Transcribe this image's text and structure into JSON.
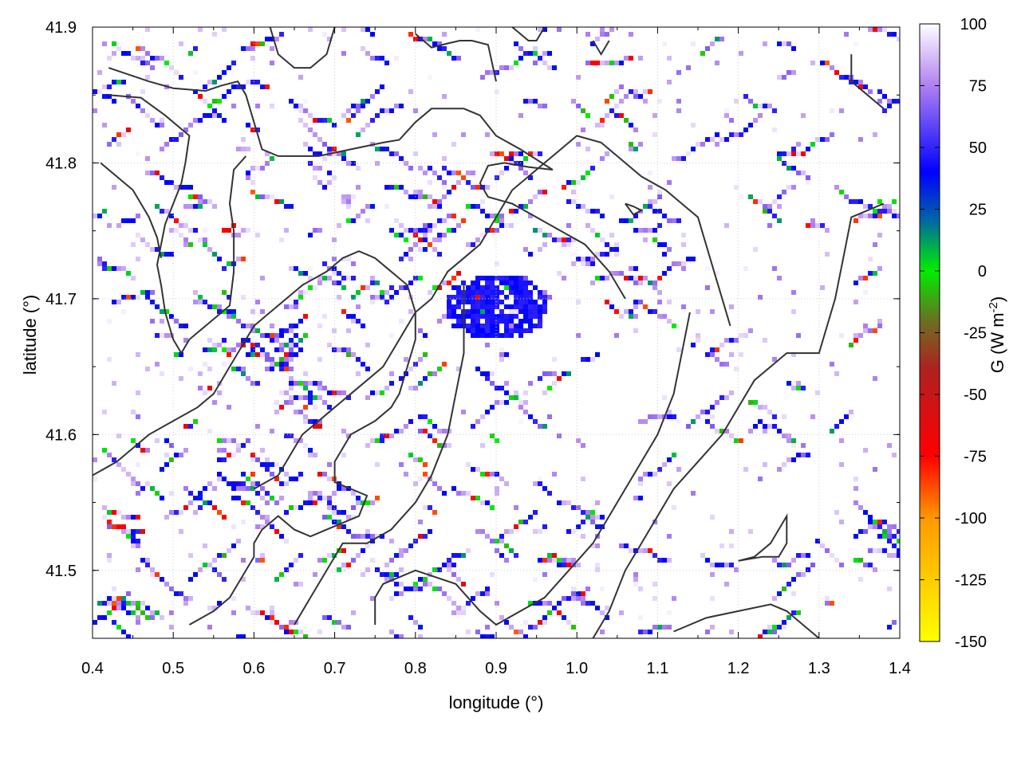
{
  "chart_data": {
    "type": "heatmap",
    "title": "",
    "xlabel": "longitude (°)",
    "ylabel": "latitude (°)",
    "xlim": [
      0.4,
      1.4
    ],
    "ylim": [
      41.45,
      41.9
    ],
    "x_ticks": [
      "0.4",
      "0.5",
      "0.6",
      "0.7",
      "0.8",
      "0.9",
      "1.0",
      "1.1",
      "1.2",
      "1.3",
      "1.4"
    ],
    "y_ticks": [
      "41.5",
      "41.6",
      "41.7",
      "41.8",
      "41.9"
    ],
    "grid": true,
    "colorbar": {
      "label_main": "G (W m",
      "label_sup": "-2",
      "label_end": ")",
      "range": [
        -150,
        100
      ],
      "ticks": [
        "100",
        "75",
        "50",
        "25",
        "0",
        "-25",
        "-50",
        "-75",
        "-100",
        "-125",
        "-150"
      ],
      "stops": [
        {
          "value": -150,
          "color": "#ffff00"
        },
        {
          "value": -100,
          "color": "#ff9900"
        },
        {
          "value": -75,
          "color": "#ff0000"
        },
        {
          "value": -40,
          "color": "#b02020"
        },
        {
          "value": -20,
          "color": "#6a7020"
        },
        {
          "value": 0,
          "color": "#00ee00"
        },
        {
          "value": 20,
          "color": "#006aa0"
        },
        {
          "value": 40,
          "color": "#0000ff"
        },
        {
          "value": 75,
          "color": "#b080f0"
        },
        {
          "value": 100,
          "color": "#ffffff"
        }
      ]
    },
    "contours": [
      [
        [
          0.42,
          41.87
        ],
        [
          0.47,
          41.86
        ],
        [
          0.5,
          41.855
        ],
        [
          0.54,
          41.853
        ],
        [
          0.56,
          41.857
        ],
        [
          0.58,
          41.86
        ],
        [
          0.59,
          41.85
        ],
        [
          0.6,
          41.83
        ],
        [
          0.61,
          41.81
        ],
        [
          0.63,
          41.805
        ],
        [
          0.68,
          41.805
        ],
        [
          0.72,
          41.81
        ],
        [
          0.76,
          41.815
        ],
        [
          0.78,
          41.817
        ],
        [
          0.8,
          41.83
        ],
        [
          0.82,
          41.84
        ],
        [
          0.86,
          41.84
        ],
        [
          0.88,
          41.835
        ],
        [
          0.9,
          41.82
        ],
        [
          0.93,
          41.81
        ],
        [
          0.97,
          41.795
        ],
        [
          0.94,
          41.797
        ],
        [
          0.91,
          41.8
        ],
        [
          0.89,
          41.798
        ],
        [
          0.88,
          41.785
        ],
        [
          0.89,
          41.775
        ],
        [
          0.92,
          41.77
        ],
        [
          0.95,
          41.76
        ],
        [
          0.98,
          41.75
        ],
        [
          1.01,
          41.74
        ],
        [
          1.04,
          41.72
        ],
        [
          1.06,
          41.7
        ]
      ],
      [
        [
          0.42,
          41.85
        ],
        [
          0.46,
          41.848
        ],
        [
          0.49,
          41.835
        ],
        [
          0.52,
          41.82
        ],
        [
          0.515,
          41.8
        ],
        [
          0.51,
          41.785
        ],
        [
          0.5,
          41.77
        ],
        [
          0.49,
          41.755
        ],
        [
          0.485,
          41.74
        ],
        [
          0.48,
          41.725
        ],
        [
          0.485,
          41.71
        ],
        [
          0.49,
          41.69
        ],
        [
          0.5,
          41.67
        ],
        [
          0.51,
          41.66
        ],
        [
          0.52,
          41.67
        ],
        [
          0.55,
          41.685
        ],
        [
          0.57,
          41.695
        ],
        [
          0.575,
          41.72
        ],
        [
          0.575,
          41.75
        ],
        [
          0.57,
          41.77
        ],
        [
          0.575,
          41.795
        ],
        [
          0.59,
          41.805
        ]
      ],
      [
        [
          0.62,
          41.9
        ],
        [
          0.63,
          41.88
        ],
        [
          0.65,
          41.87
        ],
        [
          0.67,
          41.87
        ],
        [
          0.69,
          41.88
        ],
        [
          0.7,
          41.9
        ]
      ],
      [
        [
          0.8,
          41.895
        ],
        [
          0.82,
          41.885
        ],
        [
          0.84,
          41.888
        ],
        [
          0.855,
          41.89
        ],
        [
          0.87,
          41.89
        ],
        [
          0.89,
          41.887
        ],
        [
          0.9,
          41.86
        ]
      ],
      [
        [
          0.92,
          41.9
        ],
        [
          0.94,
          41.89
        ],
        [
          0.95,
          41.89
        ],
        [
          0.96,
          41.9
        ]
      ],
      [
        [
          1.02,
          41.89
        ],
        [
          1.03,
          41.88
        ],
        [
          1.04,
          41.89
        ]
      ],
      [
        [
          0.41,
          41.8
        ],
        [
          0.45,
          41.78
        ],
        [
          0.47,
          41.76
        ],
        [
          0.48,
          41.745
        ],
        [
          0.485,
          41.73
        ]
      ],
      [
        [
          0.6,
          41.56
        ],
        [
          0.63,
          41.57
        ],
        [
          0.66,
          41.6
        ],
        [
          0.68,
          41.61
        ],
        [
          0.7,
          41.62
        ],
        [
          0.72,
          41.63
        ],
        [
          0.74,
          41.64
        ],
        [
          0.76,
          41.65
        ],
        [
          0.78,
          41.67
        ],
        [
          0.79,
          41.68
        ],
        [
          0.8,
          41.69
        ],
        [
          0.82,
          41.7
        ],
        [
          0.84,
          41.72
        ],
        [
          0.86,
          41.73
        ],
        [
          0.88,
          41.74
        ],
        [
          0.9,
          41.76
        ],
        [
          0.92,
          41.78
        ],
        [
          0.94,
          41.79
        ],
        [
          0.96,
          41.8
        ],
        [
          0.98,
          41.81
        ],
        [
          1.0,
          41.82
        ],
        [
          1.03,
          41.815
        ],
        [
          1.05,
          41.805
        ],
        [
          1.08,
          41.79
        ],
        [
          1.11,
          41.78
        ],
        [
          1.13,
          41.77
        ],
        [
          1.15,
          41.76
        ],
        [
          1.16,
          41.74
        ],
        [
          1.17,
          41.72
        ],
        [
          1.18,
          41.7
        ],
        [
          1.19,
          41.68
        ]
      ],
      [
        [
          0.4,
          41.57
        ],
        [
          0.43,
          41.58
        ],
        [
          0.45,
          41.59
        ],
        [
          0.47,
          41.6
        ],
        [
          0.5,
          41.61
        ],
        [
          0.53,
          41.62
        ],
        [
          0.55,
          41.63
        ],
        [
          0.57,
          41.65
        ],
        [
          0.59,
          41.67
        ],
        [
          0.6,
          41.68
        ],
        [
          0.62,
          41.69
        ],
        [
          0.64,
          41.7
        ],
        [
          0.66,
          41.71
        ],
        [
          0.69,
          41.72
        ],
        [
          0.71,
          41.73
        ],
        [
          0.73,
          41.735
        ],
        [
          0.75,
          41.73
        ],
        [
          0.77,
          41.72
        ],
        [
          0.79,
          41.71
        ],
        [
          0.8,
          41.69
        ],
        [
          0.8,
          41.67
        ],
        [
          0.79,
          41.65
        ],
        [
          0.78,
          41.63
        ],
        [
          0.77,
          41.62
        ],
        [
          0.75,
          41.61
        ],
        [
          0.72,
          41.6
        ],
        [
          0.71,
          41.59
        ],
        [
          0.7,
          41.58
        ],
        [
          0.7,
          41.565
        ],
        [
          0.72,
          41.56
        ],
        [
          0.74,
          41.555
        ],
        [
          0.73,
          41.54
        ],
        [
          0.71,
          41.535
        ],
        [
          0.69,
          41.53
        ],
        [
          0.67,
          41.525
        ],
        [
          0.65,
          41.53
        ],
        [
          0.63,
          41.54
        ],
        [
          0.61,
          41.53
        ],
        [
          0.6,
          41.52
        ],
        [
          0.6,
          41.51
        ],
        [
          0.59,
          41.5
        ],
        [
          0.57,
          41.48
        ],
        [
          0.55,
          41.47
        ],
        [
          0.52,
          41.46
        ]
      ],
      [
        [
          0.75,
          41.46
        ],
        [
          0.75,
          41.48
        ],
        [
          0.76,
          41.49
        ],
        [
          0.8,
          41.5
        ],
        [
          0.85,
          41.49
        ],
        [
          0.88,
          41.47
        ],
        [
          0.9,
          41.46
        ],
        [
          0.93,
          41.47
        ],
        [
          0.96,
          41.48
        ],
        [
          0.99,
          41.5
        ],
        [
          1.02,
          41.52
        ],
        [
          1.04,
          41.54
        ],
        [
          1.06,
          41.56
        ],
        [
          1.08,
          41.58
        ],
        [
          1.1,
          41.6
        ],
        [
          1.12,
          41.63
        ],
        [
          1.13,
          41.66
        ],
        [
          1.14,
          41.69
        ]
      ],
      [
        [
          0.65,
          41.46
        ],
        [
          0.67,
          41.48
        ],
        [
          0.69,
          41.5
        ],
        [
          0.71,
          41.52
        ],
        [
          0.74,
          41.52
        ],
        [
          0.77,
          41.53
        ],
        [
          0.8,
          41.55
        ],
        [
          0.82,
          41.57
        ],
        [
          0.84,
          41.6
        ],
        [
          0.85,
          41.63
        ],
        [
          0.86,
          41.66
        ],
        [
          0.86,
          41.69
        ],
        [
          0.86,
          41.71
        ]
      ],
      [
        [
          1.02,
          41.45
        ],
        [
          1.04,
          41.47
        ],
        [
          1.06,
          41.5
        ],
        [
          1.08,
          41.52
        ],
        [
          1.1,
          41.54
        ],
        [
          1.12,
          41.56
        ],
        [
          1.15,
          41.58
        ],
        [
          1.18,
          41.6
        ],
        [
          1.2,
          41.62
        ],
        [
          1.22,
          41.64
        ],
        [
          1.24,
          41.65
        ],
        [
          1.26,
          41.66
        ],
        [
          1.28,
          41.66
        ],
        [
          1.3,
          41.66
        ],
        [
          1.31,
          41.68
        ],
        [
          1.32,
          41.7
        ],
        [
          1.33,
          41.73
        ],
        [
          1.34,
          41.76
        ],
        [
          1.36,
          41.765
        ],
        [
          1.38,
          41.77
        ]
      ],
      [
        [
          1.12,
          41.455
        ],
        [
          1.16,
          41.465
        ],
        [
          1.2,
          41.47
        ],
        [
          1.24,
          41.475
        ],
        [
          1.26,
          41.47
        ],
        [
          1.28,
          41.46
        ],
        [
          1.3,
          41.45
        ]
      ],
      [
        [
          1.2,
          41.507
        ],
        [
          1.23,
          41.51
        ],
        [
          1.25,
          41.51
        ],
        [
          1.26,
          41.52
        ],
        [
          1.26,
          41.54
        ],
        [
          1.25,
          41.53
        ],
        [
          1.24,
          41.52
        ],
        [
          1.22,
          41.51
        ],
        [
          1.2,
          41.507
        ]
      ],
      [
        [
          1.34,
          41.88
        ],
        [
          1.34,
          41.86
        ],
        [
          1.36,
          41.85
        ],
        [
          1.38,
          41.84
        ]
      ],
      [
        [
          1.06,
          41.77
        ],
        [
          1.07,
          41.768
        ],
        [
          1.08,
          41.765
        ],
        [
          1.07,
          41.762
        ],
        [
          1.06,
          41.77
        ]
      ]
    ]
  }
}
